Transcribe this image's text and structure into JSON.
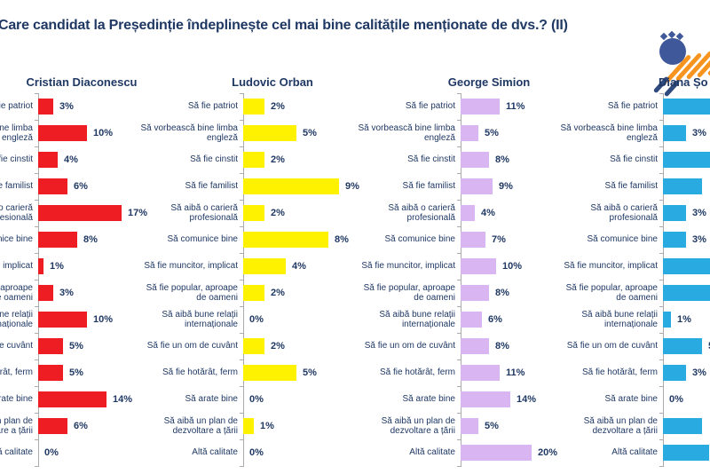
{
  "header": {
    "title": "Care candidat la Președinție îndeplinește cel mai bine calitățile menționate de dvs.? (II)"
  },
  "chart_data": {
    "type": "bar",
    "orientation": "horizontal",
    "layout": "small_multiples",
    "value_format": "percent",
    "grid": false,
    "categories": [
      "Să fie patriot",
      "Să vorbească bine limba engleză",
      "Să fie cinstit",
      "Să fie familist",
      "Să aibă o carieră profesională",
      "Să comunice bine",
      "Să fie muncitor, implicat",
      "Să fie popular, aproape de oameni",
      "Să aibă bune relații internaționale",
      "Să fie un om de cuvânt",
      "Să fie hotărât, ferm",
      "Să arate bine",
      "Să aibă un plan de dezvoltare a țării",
      "Altă calitate"
    ],
    "series": [
      {
        "name": "Cristian Diaconescu",
        "color": "#EE1C23",
        "values": [
          3,
          10,
          4,
          6,
          17,
          8,
          1,
          3,
          10,
          5,
          5,
          14,
          6,
          0
        ],
        "value_labels": [
          "3%",
          "10%",
          "4%",
          "6%",
          "17%",
          "8%",
          "1%",
          "3%",
          "10%",
          "5%",
          "5%",
          "14%",
          "6%",
          "0%"
        ],
        "labels_clipped_at_left_edge": true
      },
      {
        "name": "Ludovic Orban",
        "color": "#FFF200",
        "values": [
          2,
          5,
          2,
          9,
          2,
          8,
          4,
          2,
          0,
          2,
          5,
          0,
          1,
          0
        ],
        "value_labels": [
          "2%",
          "5%",
          "2%",
          "9%",
          "2%",
          "8%",
          "4%",
          "2%",
          "0%",
          "2%",
          "5%",
          "0%",
          "1%",
          "0%"
        ]
      },
      {
        "name": "George Simion",
        "color": "#D9B6F2",
        "values": [
          11,
          5,
          8,
          9,
          4,
          7,
          10,
          8,
          6,
          8,
          11,
          14,
          5,
          20
        ],
        "value_labels": [
          "11%",
          "5%",
          "8%",
          "9%",
          "4%",
          "7%",
          "10%",
          "8%",
          "6%",
          "8%",
          "11%",
          "14%",
          "5%",
          "20%"
        ]
      },
      {
        "name": "Diana Șo",
        "color": "#29ABE2",
        "values": [
          8,
          3,
          8,
          5,
          3,
          3,
          8,
          8,
          1,
          5,
          3,
          0,
          5,
          6
        ],
        "value_labels": [
          "",
          "3%",
          "",
          "",
          "3%",
          "3%",
          "",
          "",
          "1%",
          "5%",
          "3%",
          "0%",
          "",
          ""
        ],
        "bars_clipped_at_right_edge": true,
        "values_estimated_for_clipped_bars": true
      }
    ]
  },
  "decor": {
    "circle_color": "#3F5899",
    "stripe_color": "#F7941E",
    "dark_stripe_color": "#2F4A7E"
  }
}
